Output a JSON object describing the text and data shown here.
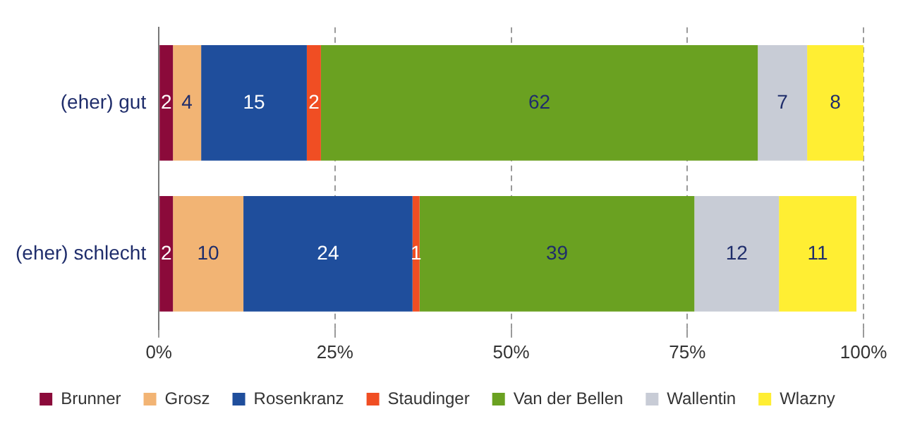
{
  "chart_data": {
    "type": "bar",
    "orientation": "horizontal",
    "stacked": true,
    "categories": [
      "(eher) gut",
      "(eher) schlecht"
    ],
    "series": [
      {
        "name": "Brunner",
        "color": "#8b0a3a",
        "values": [
          2,
          2
        ]
      },
      {
        "name": "Grosz",
        "color": "#f2b474",
        "values": [
          4,
          10
        ]
      },
      {
        "name": "Rosenkranz",
        "color": "#1f4e9c",
        "values": [
          15,
          24
        ]
      },
      {
        "name": "Staudinger",
        "color": "#f04e23",
        "values": [
          2,
          1
        ]
      },
      {
        "name": "Van der Bellen",
        "color": "#6aa121",
        "values": [
          62,
          39
        ]
      },
      {
        "name": "Wallentin",
        "color": "#c8ccd6",
        "values": [
          7,
          12
        ]
      },
      {
        "name": "Wlazny",
        "color": "#ffee33",
        "values": [
          8,
          11
        ]
      }
    ],
    "xlim": [
      0,
      100
    ],
    "xticks": [
      {
        "value": 0,
        "label": "0%"
      },
      {
        "value": 25,
        "label": "25%"
      },
      {
        "value": 50,
        "label": "50%"
      },
      {
        "value": 75,
        "label": "75%"
      },
      {
        "value": 100,
        "label": "100%"
      }
    ],
    "grid": "x",
    "legend": "bottom",
    "data_labels": true
  }
}
